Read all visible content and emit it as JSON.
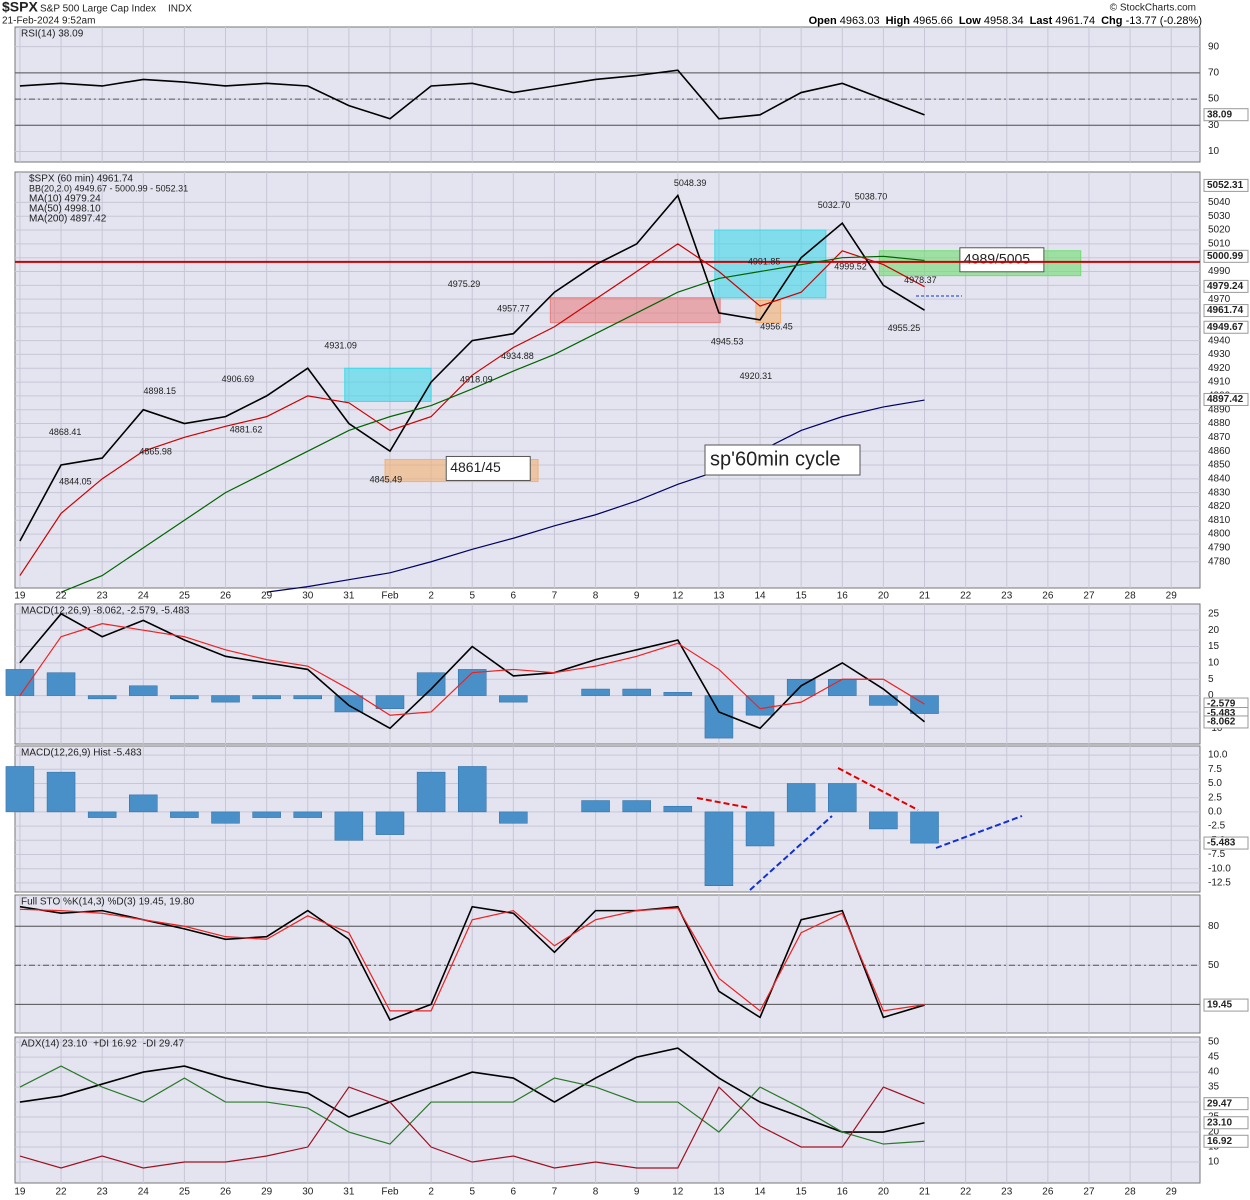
{
  "header": {
    "symbol": "$SPX",
    "name": "S&P 500 Large Cap Index",
    "exchange": "INDX",
    "date": "21-Feb-2024 9:52am",
    "credit": "© StockCharts.com",
    "quote": [
      {
        "label": "Open",
        "value": "4963.03"
      },
      {
        "label": "High",
        "value": "4965.66"
      },
      {
        "label": "Low",
        "value": "4958.34"
      },
      {
        "label": "Last",
        "value": "4961.74"
      },
      {
        "label": "Chg",
        "value": "-13.77 (-0.28%)"
      }
    ]
  },
  "x_axis": {
    "xlim": [
      -0.12,
      28.7
    ],
    "xticks": [
      {
        "value": 0,
        "label": "19"
      },
      {
        "value": 1,
        "label": "22"
      },
      {
        "value": 2,
        "label": "23"
      },
      {
        "value": 3,
        "label": "24"
      },
      {
        "value": 4,
        "label": "25"
      },
      {
        "value": 5,
        "label": "26"
      },
      {
        "value": 6,
        "label": "29"
      },
      {
        "value": 7,
        "label": "30"
      },
      {
        "value": 8,
        "label": "31"
      },
      {
        "value": 9,
        "label": "Feb"
      },
      {
        "value": 10,
        "label": "2"
      },
      {
        "value": 11,
        "label": "5"
      },
      {
        "value": 12,
        "label": "6"
      },
      {
        "value": 13,
        "label": "7"
      },
      {
        "value": 14,
        "label": "8"
      },
      {
        "value": 15,
        "label": "9"
      },
      {
        "value": 16,
        "label": "12"
      },
      {
        "value": 17,
        "label": "13"
      },
      {
        "value": 18,
        "label": "14"
      },
      {
        "value": 19,
        "label": "15"
      },
      {
        "value": 20,
        "label": "16"
      },
      {
        "value": 21,
        "label": "20"
      },
      {
        "value": 22,
        "label": "21"
      },
      {
        "value": 23,
        "label": "22"
      },
      {
        "value": 24,
        "label": "23"
      },
      {
        "value": 25,
        "label": "26"
      },
      {
        "value": 26,
        "label": "27"
      },
      {
        "value": 27,
        "label": "28"
      },
      {
        "value": 28,
        "label": "29"
      }
    ]
  },
  "chart_data": [
    {
      "type": "line",
      "title": "RSI(14) 38.09",
      "ylim": [
        2,
        105
      ],
      "yticks": [
        10,
        30,
        50,
        70,
        90
      ],
      "ref_lines": [
        30,
        70
      ],
      "mid_line": 50,
      "x": [
        0,
        1,
        2,
        3,
        4,
        5,
        6,
        7,
        8,
        9,
        10,
        11,
        12,
        13,
        14,
        15,
        16,
        17,
        18,
        19,
        20,
        21,
        22
      ],
      "series": [
        {
          "color": "#000000",
          "values": [
            60,
            62,
            60,
            65,
            63,
            60,
            62,
            60,
            45,
            35,
            60,
            62,
            55,
            60,
            65,
            68,
            72,
            35,
            38,
            55,
            62,
            50,
            38
          ]
        }
      ],
      "last_labels": [
        38.09
      ]
    },
    {
      "type": "line",
      "ylim": [
        4761,
        5062
      ],
      "yticks": [
        4780,
        4790,
        4800,
        4810,
        4820,
        4830,
        4840,
        4850,
        4860,
        4870,
        4880,
        4890,
        4900,
        4910,
        4920,
        4930,
        4940,
        4950,
        4960,
        4970,
        4980,
        4990,
        5000,
        5010,
        5020,
        5030,
        5040
      ],
      "legend": "stacked",
      "legend_note": "BB(20,2.0) 4949.67 - 5000.99 - 5052.31",
      "ref_line": 4997,
      "ref_color": "#cc0000",
      "x": [
        0,
        1,
        2,
        3,
        4,
        5,
        6,
        7,
        8,
        9,
        10,
        11,
        12,
        13,
        14,
        15,
        16,
        17,
        18,
        19,
        20,
        21,
        22
      ],
      "series": [
        {
          "name": "$SPX (60 min) 4961.74",
          "color": "#000000",
          "values": [
            4795,
            4850,
            4855,
            4890,
            4880,
            4885,
            4900,
            4920,
            4880,
            4860,
            4910,
            4940,
            4945,
            4975,
            4995,
            5010,
            5045,
            4960,
            4955,
            5000,
            5025,
            4980,
            4962
          ]
        },
        {
          "name": "MA(10) 4979.24",
          "color": "#cc0000",
          "values": [
            4770,
            4815,
            4840,
            4860,
            4870,
            4878,
            4885,
            4900,
            4895,
            4875,
            4885,
            4915,
            4935,
            4950,
            4970,
            4990,
            5010,
            4990,
            4965,
            4975,
            5005,
            4995,
            4979
          ]
        },
        {
          "name": "MA(50) 4998.10",
          "color": "#006600",
          "values": [
            null,
            4758,
            4770,
            4790,
            4810,
            4830,
            4845,
            4860,
            4875,
            4885,
            4893,
            4905,
            4918,
            4930,
            4945,
            4960,
            4975,
            4985,
            4990,
            4995,
            5000,
            5001,
            4998
          ]
        },
        {
          "name": "MA(200) 4897.42",
          "color": "#000066",
          "values": [
            null,
            null,
            null,
            null,
            null,
            null,
            4758,
            4762,
            4767,
            4772,
            4780,
            4789,
            4797,
            4806,
            4814,
            4824,
            4836,
            4846,
            4860,
            4875,
            4885,
            4892,
            4897
          ]
        }
      ],
      "zones": [
        {
          "x": [
            7.9,
            10.0
          ],
          "y": [
            4896,
            4920
          ],
          "color": "#40d8e8"
        },
        {
          "x": [
            8.88,
            12.6
          ],
          "y": [
            4838,
            4854
          ],
          "color": "#f4b070",
          "label": "4861/45"
        },
        {
          "x": [
            12.9,
            17.03
          ],
          "y": [
            4953,
            4971
          ],
          "color": "#e88080"
        },
        {
          "x": [
            16.9,
            19.6
          ],
          "y": [
            4971,
            5020
          ],
          "color": "#40d8e8"
        },
        {
          "x": [
            17.9,
            18.5
          ],
          "y": [
            4953,
            4969
          ],
          "color": "#f4b070"
        },
        {
          "x": [
            20.9,
            25.8
          ],
          "y": [
            4987,
            5005
          ],
          "color": "#70dd70",
          "label": "4989/5005"
        }
      ],
      "peak_labels": {
        "x": [
          1.1,
          1.35,
          3.3,
          3.4,
          5.3,
          5.5,
          7.8,
          8.9,
          10.8,
          11.1,
          12.0,
          12.1,
          16.3,
          17.2,
          18.1,
          17.9,
          18.4,
          19.8,
          20.2,
          20.7,
          21.9,
          21.5
        ],
        "values": [
          4868.41,
          4844.05,
          4865.98,
          4898.15,
          4906.69,
          4881.62,
          4931.09,
          4845.49,
          4975.29,
          4918.09,
          4957.77,
          4934.88,
          5048.39,
          4945.53,
          4991.85,
          4920.31,
          4956.45,
          5032.7,
          4999.52,
          5038.7,
          4978.37,
          4955.25
        ],
        "value_labels": [
          "4868.41",
          "4844.05",
          "4865.98",
          "4898.15",
          "4906.69",
          "4881.62",
          "4931.09",
          "4845.49",
          "4975.29",
          "4918.09",
          "4957.77",
          "4934.88",
          "5048.39",
          "4945.53",
          "4991.85",
          "4920.31",
          "4956.45",
          "5032.70",
          "4999.52",
          "5038.70",
          "4978.37",
          "4955.25"
        ]
      },
      "annotation": "sp'60min cycle",
      "last_labels": [
        5052.31,
        5000.99,
        4979.24,
        4961.74,
        4949.67,
        4897.42
      ]
    },
    {
      "type": "line",
      "title": "MACD(12,26,9) -8.062, -2.579, -5.483",
      "ylim": [
        -14.8,
        28
      ],
      "yticks": [
        25,
        20,
        15,
        10,
        5,
        0,
        -5,
        -10
      ],
      "histogram": true,
      "x": [
        0,
        1,
        2,
        3,
        4,
        5,
        6,
        7,
        8,
        9,
        10,
        11,
        12,
        13,
        14,
        15,
        16,
        17,
        18,
        19,
        20,
        21,
        22
      ],
      "series": [
        {
          "color": "#000000",
          "values": [
            10,
            25,
            18,
            23,
            17,
            12,
            10,
            8,
            -3,
            -10,
            2,
            15,
            6,
            7,
            11,
            14,
            17,
            -5,
            -10,
            3,
            10,
            2,
            -8
          ]
        },
        {
          "color": "#ee2222",
          "values": [
            0,
            18,
            22,
            20,
            18,
            14,
            11,
            9,
            2,
            -6,
            -5,
            7,
            8,
            7,
            9,
            12,
            16,
            8,
            -4,
            -2,
            5,
            5,
            -2.6
          ]
        }
      ],
      "last_labels": [
        -2.579,
        -5.483,
        -8.062
      ]
    },
    {
      "type": "bar",
      "title": "MACD(12,26,9) Hist -5.483",
      "ylim": [
        -14.1,
        11.6
      ],
      "color": "#4a90c8",
      "yticks": [
        {
          "value": 10,
          "label": "10.0"
        },
        {
          "value": 7.5,
          "label": "7.5"
        },
        {
          "value": 5,
          "label": "5.0"
        },
        {
          "value": 2.5,
          "label": "2.5"
        },
        {
          "value": 0,
          "label": "0.0"
        },
        {
          "value": -2.5,
          "label": "-2.5"
        },
        {
          "value": -5,
          "label": "-5.0"
        },
        {
          "value": -7.5,
          "label": "-7.5"
        },
        {
          "value": -10,
          "label": "-10.0"
        },
        {
          "value": -12.5,
          "label": "-12.5"
        }
      ],
      "x": [
        0,
        1,
        2,
        3,
        4,
        5,
        6,
        7,
        8,
        9,
        10,
        11,
        12,
        13,
        14,
        15,
        16,
        17,
        18,
        19,
        20,
        21,
        22
      ],
      "values": [
        8,
        7,
        -1,
        3,
        -1,
        -2,
        -1,
        -1,
        -5,
        -4,
        7,
        8,
        -2,
        0,
        2,
        2,
        1,
        -13,
        -6,
        5,
        5,
        -3,
        -5.5
      ],
      "last_labels": [
        -5.483
      ]
    },
    {
      "type": "line",
      "title": "Full STO %K(14,3) %D(3) 19.45, 19.80",
      "ylim": [
        -2,
        104
      ],
      "yticks": [
        20,
        50,
        80
      ],
      "ref_lines": [
        20,
        80
      ],
      "mid_line": 50,
      "x": [
        0,
        1,
        2,
        3,
        4,
        5,
        6,
        7,
        8,
        9,
        10,
        11,
        12,
        13,
        14,
        15,
        16,
        17,
        18,
        19,
        20,
        21,
        22
      ],
      "series": [
        {
          "color": "#000000",
          "values": [
            95,
            90,
            92,
            85,
            78,
            70,
            72,
            92,
            70,
            8,
            20,
            95,
            90,
            60,
            92,
            92,
            95,
            30,
            10,
            85,
            92,
            10,
            19.45
          ]
        },
        {
          "color": "#ee2222",
          "values": [
            93,
            92,
            90,
            85,
            80,
            72,
            70,
            88,
            75,
            15,
            15,
            85,
            92,
            65,
            85,
            92,
            94,
            40,
            15,
            75,
            90,
            15,
            19.8
          ]
        }
      ],
      "last_labels": [
        19.45
      ]
    },
    {
      "type": "line",
      "ylim": [
        3,
        51.7
      ],
      "yticks": [
        10,
        15,
        20,
        25,
        30,
        35,
        40,
        45,
        50
      ],
      "legend": "inline",
      "x": [
        0,
        1,
        2,
        3,
        4,
        5,
        6,
        7,
        8,
        9,
        10,
        11,
        12,
        13,
        14,
        15,
        16,
        17,
        18,
        19,
        20,
        21,
        22
      ],
      "series": [
        {
          "name": "ADX(14) 23.10",
          "color": "#000000",
          "values": [
            30,
            32,
            36,
            40,
            42,
            38,
            35,
            33,
            25,
            30,
            35,
            40,
            38,
            30,
            38,
            45,
            48,
            38,
            30,
            25,
            20,
            20,
            23.1
          ]
        },
        {
          "name": "+DI 16.92",
          "color": "#2a7a2a",
          "values": [
            35,
            42,
            35,
            30,
            38,
            30,
            30,
            28,
            20,
            16,
            30,
            30,
            30,
            38,
            35,
            30,
            30,
            20,
            35,
            28,
            20,
            16,
            16.92
          ]
        },
        {
          "name": "-DI 29.47",
          "color": "#a01020",
          "values": [
            12,
            8,
            12,
            8,
            10,
            10,
            12,
            15,
            35,
            30,
            15,
            10,
            12,
            8,
            10,
            8,
            8,
            35,
            22,
            15,
            15,
            35,
            29.47
          ]
        }
      ],
      "last_labels": [
        29.47,
        {
          "value": 23.1,
          "label": "23.10"
        },
        16.92
      ]
    }
  ]
}
